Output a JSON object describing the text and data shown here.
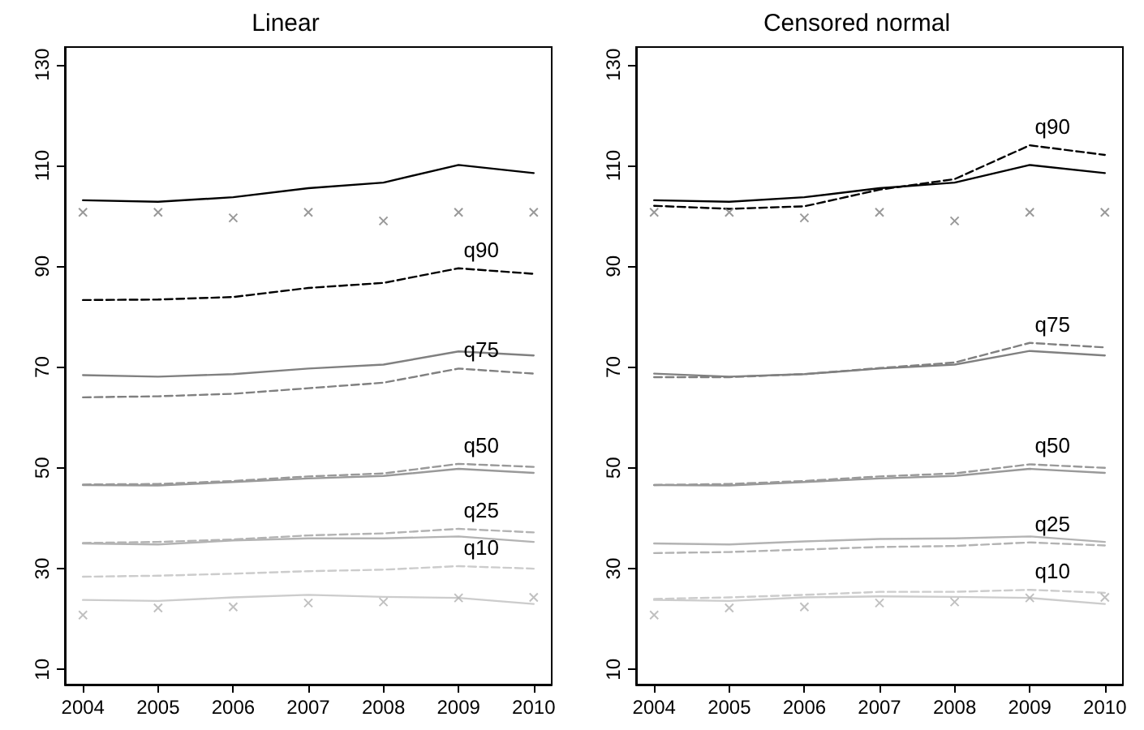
{
  "chart_data": [
    {
      "type": "line",
      "title": "Linear",
      "x": [
        2004,
        2005,
        2006,
        2007,
        2008,
        2009,
        2010
      ],
      "xlim": [
        2003.76,
        2010.24
      ],
      "xticks": [
        2004,
        2005,
        2006,
        2007,
        2008,
        2009,
        2010
      ],
      "ylim": [
        7,
        133.5
      ],
      "yticks": [
        10,
        30,
        50,
        70,
        90,
        110,
        130
      ],
      "grid": false,
      "legend": false,
      "series": [
        {
          "type": "scatter",
          "marker": "cross",
          "color": "#808080",
          "values": [
            100.7,
            100.7,
            99.6,
            100.7,
            99,
            100.7,
            100.7
          ]
        },
        {
          "type": "scatter",
          "marker": "cross",
          "color": "#b0b0b0",
          "values": [
            20.8,
            22.2,
            22.4,
            23.2,
            23.4,
            24.2,
            24.3
          ]
        },
        {
          "color": "#000000",
          "line_style": "solid",
          "values": [
            103.1,
            102.8,
            103.7,
            105.5,
            106.6,
            110.1,
            108.5
          ]
        },
        {
          "name": "q90",
          "color": "#000000",
          "line_style": "dashed",
          "values": [
            83.3,
            83.4,
            83.9,
            85.7,
            86.7,
            89.6,
            88.5
          ]
        },
        {
          "color": "#808080",
          "line_style": "solid",
          "values": [
            68.4,
            68.1,
            68.6,
            69.7,
            70.5,
            73.1,
            72.3
          ]
        },
        {
          "name": "q75",
          "color": "#808080",
          "line_style": "dashed",
          "values": [
            64,
            64.2,
            64.7,
            65.8,
            66.9,
            69.7,
            68.7
          ]
        },
        {
          "color": "#999999",
          "line_style": "solid",
          "values": [
            46.6,
            46.5,
            47.2,
            47.9,
            48.4,
            49.8,
            49
          ]
        },
        {
          "name": "q50",
          "color": "#999999",
          "line_style": "dashed",
          "values": [
            46.7,
            46.8,
            47.4,
            48.3,
            48.9,
            50.8,
            50.2
          ]
        },
        {
          "color": "#b3b3b3",
          "line_style": "solid",
          "values": [
            35,
            34.8,
            35.6,
            36,
            36,
            36.4,
            35.3
          ]
        },
        {
          "name": "q25",
          "color": "#b3b3b3",
          "line_style": "dashed",
          "values": [
            35.1,
            35.3,
            35.8,
            36.6,
            37,
            37.9,
            37.2
          ]
        },
        {
          "color": "#cccccc",
          "line_style": "solid",
          "values": [
            23.8,
            23.6,
            24.3,
            24.8,
            24.4,
            24.2,
            23
          ]
        },
        {
          "name": "q10",
          "color": "#cccccc",
          "line_style": "dashed",
          "values": [
            28.4,
            28.6,
            29,
            29.5,
            29.8,
            30.5,
            30
          ]
        }
      ]
    },
    {
      "type": "line",
      "title": "Censored normal",
      "x": [
        2004,
        2005,
        2006,
        2007,
        2008,
        2009,
        2010
      ],
      "xlim": [
        2003.76,
        2010.24
      ],
      "xticks": [
        2004,
        2005,
        2006,
        2007,
        2008,
        2009,
        2010
      ],
      "ylim": [
        7,
        133.5
      ],
      "yticks": [
        10,
        30,
        50,
        70,
        90,
        110,
        130
      ],
      "grid": false,
      "legend": false,
      "series": [
        {
          "type": "scatter",
          "marker": "cross",
          "color": "#808080",
          "values": [
            100.7,
            100.7,
            99.6,
            100.7,
            99,
            100.7,
            100.7
          ]
        },
        {
          "type": "scatter",
          "marker": "cross",
          "color": "#b0b0b0",
          "values": [
            20.8,
            22.2,
            22.4,
            23.2,
            23.4,
            24.2,
            24.3
          ]
        },
        {
          "color": "#000000",
          "line_style": "solid",
          "values": [
            103.1,
            102.8,
            103.7,
            105.5,
            106.6,
            110.1,
            108.5
          ]
        },
        {
          "name": "q90",
          "color": "#000000",
          "line_style": "dashed",
          "values": [
            102,
            101.4,
            101.9,
            105.2,
            107.3,
            114,
            112.1
          ]
        },
        {
          "color": "#808080",
          "line_style": "solid",
          "values": [
            68.7,
            68.1,
            68.6,
            69.7,
            70.5,
            73.2,
            72.3
          ]
        },
        {
          "name": "q75",
          "color": "#808080",
          "line_style": "dashed",
          "values": [
            68,
            68,
            68.6,
            69.8,
            70.9,
            74.8,
            73.9
          ]
        },
        {
          "color": "#999999",
          "line_style": "solid",
          "values": [
            46.6,
            46.5,
            47.2,
            47.9,
            48.4,
            49.8,
            49
          ]
        },
        {
          "name": "q50",
          "color": "#999999",
          "line_style": "dashed",
          "values": [
            46.6,
            46.8,
            47.4,
            48.3,
            48.9,
            50.7,
            50
          ]
        },
        {
          "color": "#b3b3b3",
          "line_style": "solid",
          "values": [
            35,
            34.8,
            35.4,
            35.9,
            36,
            36.4,
            35.3
          ]
        },
        {
          "name": "q25",
          "color": "#b3b3b3",
          "line_style": "dashed",
          "values": [
            33.1,
            33.3,
            33.8,
            34.3,
            34.5,
            35.2,
            34.6
          ]
        },
        {
          "color": "#cccccc",
          "line_style": "solid",
          "values": [
            23.8,
            23.6,
            24.3,
            24.5,
            24.4,
            24.2,
            23
          ]
        },
        {
          "name": "q10",
          "color": "#cccccc",
          "line_style": "dashed",
          "values": [
            24,
            24.3,
            24.8,
            25.4,
            25.4,
            25.8,
            25.2
          ]
        }
      ]
    }
  ]
}
